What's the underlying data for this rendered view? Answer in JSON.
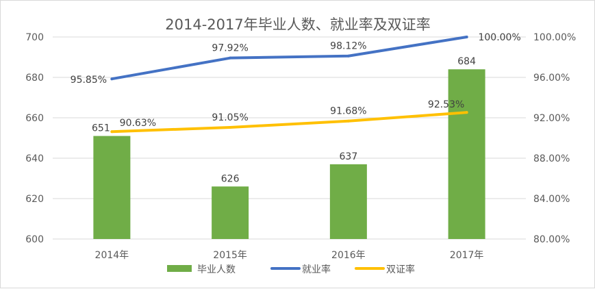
{
  "chart_data": {
    "type": "bar",
    "title": "2014-2017年毕业人数、就业率及双证率",
    "categories": [
      "2014年",
      "2015年",
      "2016年",
      "2017年"
    ],
    "series": [
      {
        "name": "毕业人数",
        "type": "bar",
        "axis": "left",
        "values": [
          651,
          626,
          637,
          684
        ],
        "labels": [
          "651",
          "626",
          "637",
          "684"
        ],
        "color": "#70ad47"
      },
      {
        "name": "就业率",
        "type": "line",
        "axis": "right",
        "values": [
          95.85,
          97.92,
          98.12,
          100.0
        ],
        "labels": [
          "95.85%",
          "97.92%",
          "98.12%",
          "100.00%"
        ],
        "color": "#4472c4"
      },
      {
        "name": "双证率",
        "type": "line",
        "axis": "right",
        "values": [
          90.63,
          91.05,
          91.68,
          92.53
        ],
        "labels": [
          "90.63%",
          "91.05%",
          "91.68%",
          "92.53%"
        ],
        "color": "#ffc000"
      }
    ],
    "y_left": {
      "min": 600,
      "max": 700,
      "ticks": [
        600,
        620,
        640,
        660,
        680,
        700
      ],
      "tick_labels": [
        "600",
        "620",
        "640",
        "660",
        "680",
        "700"
      ]
    },
    "y_right": {
      "min": 80,
      "max": 100,
      "ticks": [
        80,
        84,
        88,
        92,
        96,
        100
      ],
      "tick_labels": [
        "80.00%",
        "84.00%",
        "88.00%",
        "92.00%",
        "96.00%",
        "100.00%"
      ]
    },
    "grid": true,
    "gridline_color": "#d9d9d9",
    "legend_position": "bottom"
  }
}
